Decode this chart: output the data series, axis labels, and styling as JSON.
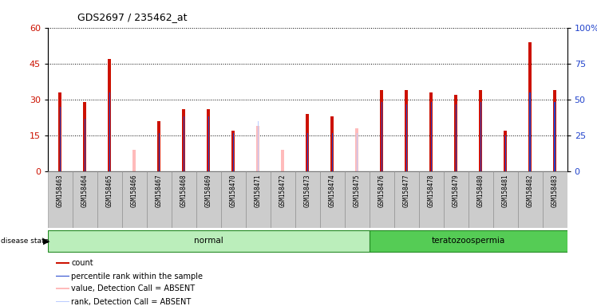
{
  "title": "GDS2697 / 235462_at",
  "samples": [
    "GSM158463",
    "GSM158464",
    "GSM158465",
    "GSM158466",
    "GSM158467",
    "GSM158468",
    "GSM158469",
    "GSM158470",
    "GSM158471",
    "GSM158472",
    "GSM158473",
    "GSM158474",
    "GSM158475",
    "GSM158476",
    "GSM158477",
    "GSM158478",
    "GSM158479",
    "GSM158480",
    "GSM158481",
    "GSM158482",
    "GSM158483"
  ],
  "count": [
    33,
    29,
    47,
    0,
    21,
    26,
    26,
    17,
    0,
    0,
    24,
    23,
    0,
    34,
    34,
    33,
    32,
    34,
    17,
    54,
    34
  ],
  "rank": [
    27,
    22,
    33,
    0,
    16,
    23,
    23,
    16,
    0,
    0,
    16,
    16,
    0,
    29,
    28,
    29,
    28,
    29,
    15,
    33,
    29
  ],
  "absent_value": [
    0,
    0,
    0,
    9,
    0,
    0,
    0,
    0,
    19,
    9,
    0,
    0,
    18,
    0,
    0,
    0,
    0,
    0,
    0,
    0,
    0
  ],
  "absent_rank": [
    0,
    0,
    0,
    0,
    0,
    0,
    0,
    0,
    21,
    0,
    0,
    0,
    16,
    0,
    0,
    0,
    0,
    0,
    0,
    0,
    0
  ],
  "disease_state": [
    "normal",
    "normal",
    "normal",
    "normal",
    "normal",
    "normal",
    "normal",
    "normal",
    "normal",
    "normal",
    "normal",
    "normal",
    "normal",
    "teratozoospermia",
    "teratozoospermia",
    "teratozoospermia",
    "teratozoospermia",
    "teratozoospermia",
    "teratozoospermia",
    "teratozoospermia",
    "teratozoospermia"
  ],
  "ylim_left": [
    0,
    60
  ],
  "ylim_right": [
    0,
    100
  ],
  "yticks_left": [
    0,
    15,
    30,
    45,
    60
  ],
  "yticks_right": [
    0,
    25,
    50,
    75,
    100
  ],
  "color_count": "#cc1100",
  "color_rank": "#2244cc",
  "color_absent_value": "#ffbbbb",
  "color_absent_rank": "#bbccff",
  "color_normal_bg": "#bbeebb",
  "color_tera_bg": "#55cc55",
  "color_xticklabel_bg": "#cccccc",
  "bar_width": 0.12,
  "rank_bar_width": 0.04
}
